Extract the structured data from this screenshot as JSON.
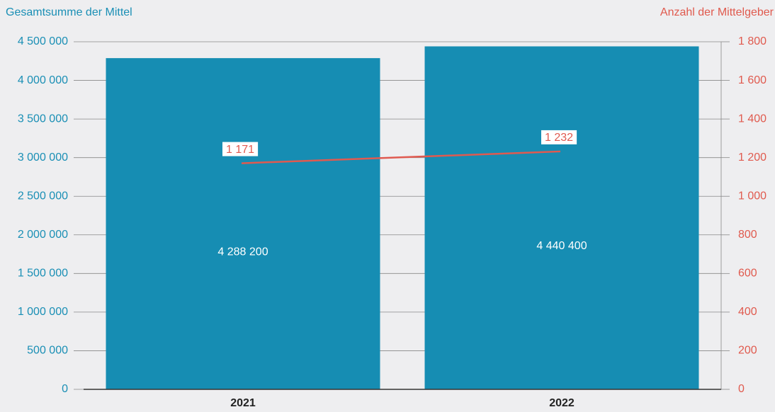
{
  "chart_data": {
    "type": "bar",
    "ylabel": "Gesamtsumme der Mittel",
    "y2label": "Anzahl der Mittelgeber",
    "categories": [
      "2021",
      "2022"
    ],
    "series": [
      {
        "type": "bar",
        "color": "#168db3",
        "values": [
          4288200,
          4440400
        ],
        "value_labels": [
          "4 288 200",
          "4 440 400"
        ]
      },
      {
        "type": "line",
        "axis": "y2",
        "color": "#e05a50",
        "values": [
          1171,
          1232
        ],
        "value_labels": [
          "1 171",
          "1 232"
        ]
      }
    ],
    "ylim": [
      0,
      4500000
    ],
    "yticks": [
      0,
      {
        "value": 500000,
        "label": "500 000"
      },
      {
        "value": 1000000,
        "label": "1 000 000"
      },
      {
        "value": 1500000,
        "label": "1 500 000"
      },
      {
        "value": 2000000,
        "label": "2 000 000"
      },
      {
        "value": 2500000,
        "label": "2 500 000"
      },
      {
        "value": 3000000,
        "label": "3 000 000"
      },
      {
        "value": 3500000,
        "label": "3 500 000"
      },
      {
        "value": 4000000,
        "label": "4 000 000"
      },
      {
        "value": 4500000,
        "label": "4 500 000"
      }
    ],
    "y2lim": [
      0,
      1800
    ],
    "y2ticks": [
      0,
      200,
      400,
      600,
      800,
      {
        "value": 1000,
        "label": "1 000"
      },
      {
        "value": 1200,
        "label": "1 200"
      },
      {
        "value": 1400,
        "label": "1 400"
      },
      {
        "value": 1600,
        "label": "1 600"
      },
      {
        "value": 1800,
        "label": "1 800"
      }
    ],
    "grid": true,
    "ycolor": "#1a8fb5",
    "y2color": "#e05a4e"
  }
}
